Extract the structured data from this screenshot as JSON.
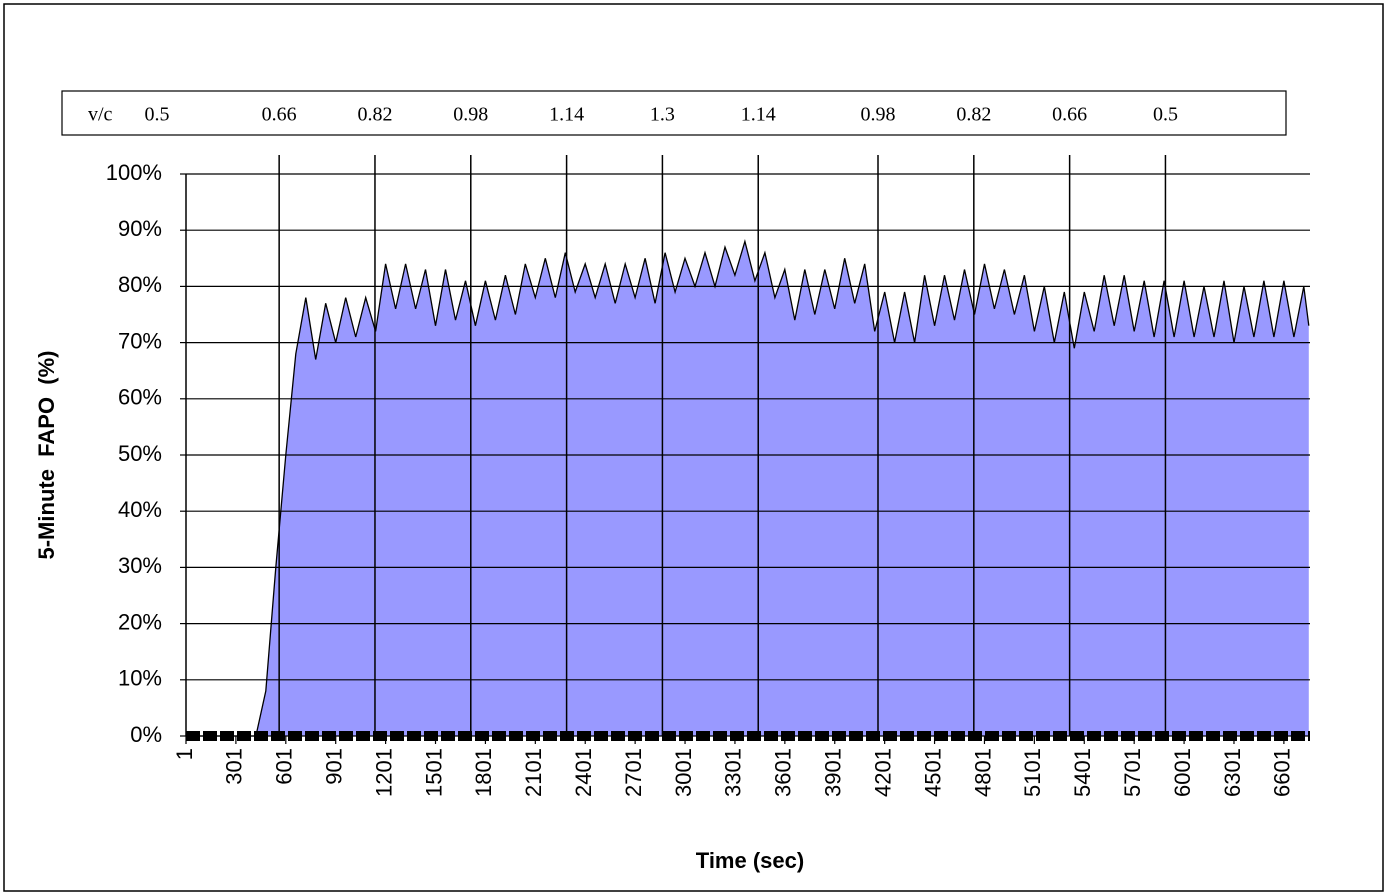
{
  "chart_data": {
    "type": "area",
    "ylabel": "5-Minute  FAPO  (%)",
    "xlabel": "Time (sec)",
    "vc_title": "v/c",
    "vc_labels": [
      "0.5",
      "0.66",
      "0.82",
      "0.98",
      "1.14",
      "1.3",
      "1.14",
      "0.98",
      "0.82",
      "0.66",
      "0.5"
    ],
    "vc_lines": [
      561,
      1137,
      1713,
      2289,
      2865,
      3441,
      4161,
      4737,
      5313,
      5889
    ],
    "color": "#9999ff",
    "xlim": [
      1,
      6758
    ],
    "xticks": [
      1,
      301,
      601,
      901,
      1201,
      1501,
      1801,
      2101,
      2401,
      2701,
      3001,
      3301,
      3601,
      3901,
      4201,
      4501,
      4801,
      5101,
      5401,
      5701,
      6001,
      6301,
      6601
    ],
    "ylim": [
      0,
      100
    ],
    "yticks": [
      {
        "value": 0,
        "label": "0%"
      },
      {
        "value": 10,
        "label": "10%"
      },
      {
        "value": 20,
        "label": "20%"
      },
      {
        "value": 30,
        "label": "30%"
      },
      {
        "value": 40,
        "label": "40%"
      },
      {
        "value": 50,
        "label": "50%"
      },
      {
        "value": 60,
        "label": "60%"
      },
      {
        "value": 70,
        "label": "70%"
      },
      {
        "value": 80,
        "label": "80%"
      },
      {
        "value": 90,
        "label": "90%"
      },
      {
        "value": 100,
        "label": "100%"
      }
    ],
    "grid": true,
    "x": [
      1,
      61,
      121,
      181,
      241,
      301,
      361,
      421,
      481,
      541,
      601,
      661,
      721,
      781,
      841,
      901,
      961,
      1021,
      1081,
      1141,
      1201,
      1261,
      1321,
      1381,
      1441,
      1501,
      1561,
      1621,
      1681,
      1741,
      1801,
      1861,
      1921,
      1981,
      2041,
      2101,
      2161,
      2221,
      2281,
      2341,
      2401,
      2461,
      2521,
      2581,
      2641,
      2701,
      2761,
      2821,
      2881,
      2941,
      3001,
      3061,
      3121,
      3181,
      3241,
      3301,
      3361,
      3421,
      3481,
      3541,
      3601,
      3661,
      3721,
      3781,
      3841,
      3901,
      3961,
      4021,
      4081,
      4141,
      4201,
      4261,
      4321,
      4381,
      4441,
      4501,
      4561,
      4621,
      4681,
      4741,
      4801,
      4861,
      4921,
      4981,
      5041,
      5101,
      5161,
      5221,
      5281,
      5341,
      5401,
      5461,
      5521,
      5581,
      5641,
      5701,
      5761,
      5821,
      5881,
      5941,
      6001,
      6061,
      6121,
      6181,
      6241,
      6301,
      6361,
      6421,
      6481,
      6541,
      6601,
      6661,
      6721,
      6751
    ],
    "values": [
      0,
      0,
      0,
      0,
      0,
      0,
      0,
      0,
      8,
      30,
      50,
      68,
      78,
      67,
      77,
      70,
      78,
      71,
      78,
      72,
      84,
      76,
      84,
      76,
      83,
      73,
      83,
      74,
      81,
      73,
      81,
      74,
      82,
      75,
      84,
      78,
      85,
      78,
      86,
      79,
      84,
      78,
      84,
      77,
      84,
      78,
      85,
      77,
      86,
      79,
      85,
      80,
      86,
      80,
      87,
      82,
      88,
      81,
      86,
      78,
      83,
      74,
      83,
      75,
      83,
      76,
      85,
      77,
      84,
      72,
      79,
      70,
      79,
      70,
      82,
      73,
      82,
      74,
      83,
      75,
      84,
      76,
      83,
      75,
      82,
      72,
      80,
      70,
      79,
      69,
      79,
      72,
      82,
      73,
      82,
      72,
      81,
      71,
      81,
      71,
      81,
      71,
      80,
      71,
      81,
      70,
      80,
      71,
      81,
      71,
      81,
      71,
      80,
      73
    ]
  }
}
